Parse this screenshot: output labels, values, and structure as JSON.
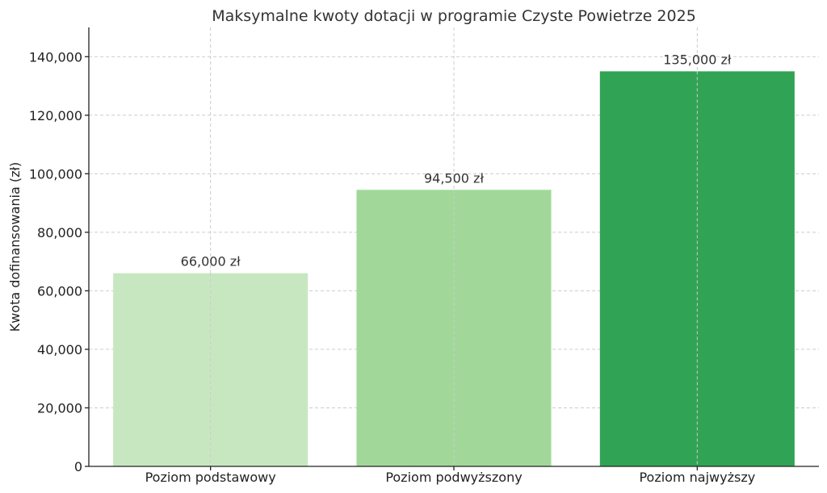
{
  "chart_data": {
    "type": "bar",
    "title": "Maksymalne kwoty dotacji w programie Czyste Powietrze 2025",
    "xlabel": "",
    "ylabel": "Kwota dofinansowania (zł)",
    "categories": [
      "Poziom podstawowy",
      "Poziom podwyższony",
      "Poziom najwyższy"
    ],
    "values": [
      66000,
      94500,
      135000
    ],
    "data_labels": [
      "66,000 zł",
      "94,500 zł",
      "135,000 zł"
    ],
    "bar_colors": [
      "#c7e7c1",
      "#a1d899",
      "#31a354"
    ],
    "ylim": [
      0,
      150000
    ],
    "yticks": [
      0,
      20000,
      40000,
      60000,
      80000,
      100000,
      120000,
      140000
    ],
    "ytick_labels": [
      "0",
      "20,000",
      "40,000",
      "60,000",
      "80,000",
      "100,000",
      "120,000",
      "140,000"
    ],
    "grid": true
  }
}
